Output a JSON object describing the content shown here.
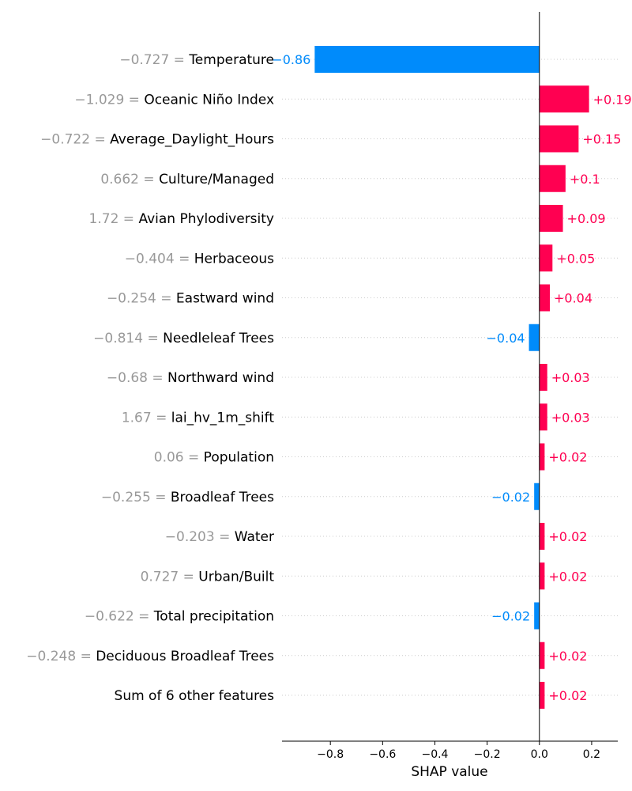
{
  "chart_data": {
    "type": "bar",
    "orientation": "horizontal",
    "xlabel": "SHAP value",
    "xlim": [
      -0.985,
      0.3
    ],
    "xticks": [
      -0.8,
      -0.6,
      -0.4,
      -0.2,
      0.0,
      0.2
    ],
    "xtick_labels": [
      "−0.8",
      "−0.6",
      "−0.4",
      "−0.2",
      "0.0",
      "0.2"
    ],
    "grid": "dotted row lines",
    "colors": {
      "positive": "#ff0051",
      "negative": "#008bfb",
      "feature_value": "#999999",
      "feature_name": "#000000"
    },
    "features": [
      {
        "value": "−0.727",
        "name": "Temperature",
        "shap": -0.86,
        "label": "−0.86"
      },
      {
        "value": "−1.029",
        "name": "Oceanic Niño Index",
        "shap": 0.19,
        "label": "+0.19"
      },
      {
        "value": "−0.722",
        "name": "Average_Daylight_Hours",
        "shap": 0.15,
        "label": "+0.15"
      },
      {
        "value": "0.662",
        "name": "Culture/Managed",
        "shap": 0.1,
        "label": "+0.1"
      },
      {
        "value": "1.72",
        "name": "Avian Phylodiversity",
        "shap": 0.09,
        "label": "+0.09"
      },
      {
        "value": "−0.404",
        "name": "Herbaceous",
        "shap": 0.05,
        "label": "+0.05"
      },
      {
        "value": "−0.254",
        "name": "Eastward wind",
        "shap": 0.04,
        "label": "+0.04"
      },
      {
        "value": "−0.814",
        "name": "Needleleaf Trees",
        "shap": -0.04,
        "label": "−0.04"
      },
      {
        "value": "−0.68",
        "name": "Northward wind",
        "shap": 0.03,
        "label": "+0.03"
      },
      {
        "value": "1.67",
        "name": "lai_hv_1m_shift",
        "shap": 0.03,
        "label": "+0.03"
      },
      {
        "value": "0.06",
        "name": "Population",
        "shap": 0.02,
        "label": "+0.02"
      },
      {
        "value": "−0.255",
        "name": "Broadleaf Trees",
        "shap": -0.02,
        "label": "−0.02"
      },
      {
        "value": "−0.203",
        "name": "Water",
        "shap": 0.02,
        "label": "+0.02"
      },
      {
        "value": "0.727",
        "name": "Urban/Built",
        "shap": 0.02,
        "label": "+0.02"
      },
      {
        "value": "−0.622",
        "name": "Total precipitation",
        "shap": -0.02,
        "label": "−0.02"
      },
      {
        "value": "−0.248",
        "name": "Deciduous Broadleaf Trees",
        "shap": 0.02,
        "label": "+0.02"
      },
      {
        "value": "",
        "name": "Sum of 6 other features",
        "shap": 0.02,
        "label": "+0.02"
      }
    ]
  }
}
